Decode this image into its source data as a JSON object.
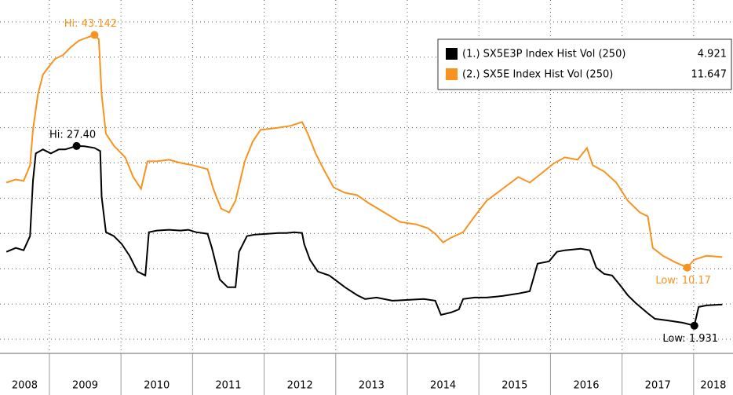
{
  "chart_data": {
    "type": "line",
    "xlim": [
      2008.31,
      2018.55
    ],
    "xticks": [
      2009,
      2010,
      2011,
      2012,
      2013,
      2014,
      2015,
      2016,
      2017,
      2018
    ],
    "year_labels": [
      "2008",
      "2009",
      "2010",
      "2011",
      "2012",
      "2013",
      "2014",
      "2015",
      "2016",
      "2017",
      "2018"
    ],
    "ylim": [
      -2,
      48.1
    ],
    "yticks": [
      0,
      5,
      10,
      15,
      20,
      25,
      30,
      35,
      40,
      45
    ],
    "grid": true,
    "legend": "top-right",
    "series": [
      {
        "name": "(1.) SX5E3P Index Hist Vol (250)",
        "last_value": "4.921",
        "color": "#000000",
        "x": [
          2008.4,
          2008.53,
          2008.64,
          2008.73,
          2008.77,
          2008.81,
          2008.91,
          2009.02,
          2009.13,
          2009.22,
          2009.38,
          2009.49,
          2009.63,
          2009.71,
          2009.73,
          2009.79,
          2009.9,
          2010.01,
          2010.12,
          2010.23,
          2010.34,
          2010.39,
          2010.5,
          2010.67,
          2010.83,
          2010.94,
          2011.05,
          2011.21,
          2011.27,
          2011.38,
          2011.49,
          2011.6,
          2011.65,
          2011.76,
          2011.87,
          2012.04,
          2012.2,
          2012.31,
          2012.42,
          2012.53,
          2012.56,
          2012.64,
          2012.75,
          2012.91,
          2013.13,
          2013.3,
          2013.41,
          2013.57,
          2013.79,
          2014.01,
          2014.23,
          2014.39,
          2014.47,
          2014.61,
          2014.72,
          2014.78,
          2014.94,
          2015.11,
          2015.33,
          2015.55,
          2015.71,
          2015.82,
          2015.98,
          2016.09,
          2016.2,
          2016.42,
          2016.55,
          2016.64,
          2016.75,
          2016.86,
          2016.97,
          2017.08,
          2017.19,
          2017.36,
          2017.46,
          2017.63,
          2017.85,
          2018.01,
          2018.07,
          2018.18,
          2018.4
        ],
        "values": [
          12.39,
          12.95,
          12.62,
          14.63,
          22.44,
          26.35,
          26.91,
          26.35,
          26.91,
          26.91,
          27.4,
          27.36,
          27.13,
          26.68,
          20.21,
          15.18,
          14.63,
          13.51,
          11.84,
          9.6,
          9.04,
          15.18,
          15.41,
          15.52,
          15.41,
          15.52,
          15.18,
          14.96,
          12.95,
          8.49,
          7.37,
          7.37,
          12.39,
          14.63,
          14.85,
          14.96,
          15.07,
          15.07,
          15.18,
          15.07,
          13.51,
          11.28,
          9.6,
          9.04,
          7.37,
          6.25,
          5.7,
          5.92,
          5.47,
          5.58,
          5.7,
          5.47,
          3.46,
          3.8,
          4.24,
          5.7,
          5.92,
          5.92,
          6.14,
          6.48,
          6.81,
          10.72,
          11.05,
          12.39,
          12.62,
          12.84,
          12.62,
          10.16,
          9.27,
          9.04,
          7.7,
          6.25,
          5.14,
          3.68,
          2.9,
          2.68,
          2.34,
          1.931,
          4.58,
          4.8,
          4.921
        ]
      },
      {
        "name": "(2.) SX5E Index Hist Vol (250)",
        "last_value": "11.647",
        "color": "#f7931e",
        "x": [
          2008.4,
          2008.53,
          2008.64,
          2008.73,
          2008.77,
          2008.84,
          2008.91,
          2008.99,
          2009.08,
          2009.19,
          2009.3,
          2009.41,
          2009.52,
          2009.63,
          2009.69,
          2009.73,
          2009.79,
          2009.9,
          2010.06,
          2010.17,
          2010.28,
          2010.37,
          2010.5,
          2010.67,
          2010.83,
          2011.0,
          2011.21,
          2011.29,
          2011.4,
          2011.51,
          2011.6,
          2011.73,
          2011.84,
          2011.95,
          2012.15,
          2012.37,
          2012.53,
          2012.61,
          2012.72,
          2012.83,
          2012.97,
          2013.13,
          2013.3,
          2013.46,
          2013.68,
          2013.9,
          2014.12,
          2014.29,
          2014.39,
          2014.5,
          2014.61,
          2014.78,
          2014.94,
          2015.11,
          2015.33,
          2015.55,
          2015.71,
          2015.88,
          2016.04,
          2016.2,
          2016.38,
          2016.51,
          2016.59,
          2016.75,
          2016.92,
          2017.08,
          2017.25,
          2017.36,
          2017.43,
          2017.57,
          2017.74,
          2017.91,
          2018.01,
          2018.18,
          2018.4
        ],
        "values": [
          22.22,
          22.66,
          22.44,
          24.67,
          29.7,
          34.72,
          37.51,
          38.63,
          39.75,
          40.3,
          41.42,
          42.31,
          42.76,
          43.142,
          42.54,
          34.72,
          29.14,
          27.46,
          25.79,
          23.0,
          21.32,
          25.23,
          25.23,
          25.46,
          25.01,
          24.67,
          24.12,
          21.32,
          18.53,
          17.97,
          19.65,
          25.23,
          28.02,
          29.7,
          29.92,
          30.26,
          30.81,
          29.14,
          26.35,
          24.12,
          21.55,
          20.77,
          20.43,
          19.31,
          17.97,
          16.63,
          16.3,
          15.74,
          14.96,
          13.73,
          14.4,
          15.18,
          17.42,
          19.65,
          21.32,
          23.0,
          22.22,
          23.56,
          24.9,
          25.79,
          25.46,
          27.13,
          24.67,
          23.78,
          22.22,
          19.65,
          17.97,
          17.42,
          12.95,
          11.84,
          10.94,
          10.17,
          11.28,
          11.84,
          11.647
        ]
      }
    ],
    "annotations": [
      {
        "label": "Hi: 43.142",
        "x": 2009.63,
        "y": 43.142,
        "series": 1
      },
      {
        "label": "Hi: 27.40",
        "x": 2009.38,
        "y": 27.4,
        "series": 0
      },
      {
        "label": "Low: 10.17",
        "x": 2017.91,
        "y": 10.17,
        "series": 1
      },
      {
        "label": "Low: 1.931",
        "x": 2018.01,
        "y": 1.931,
        "series": 0
      }
    ]
  }
}
